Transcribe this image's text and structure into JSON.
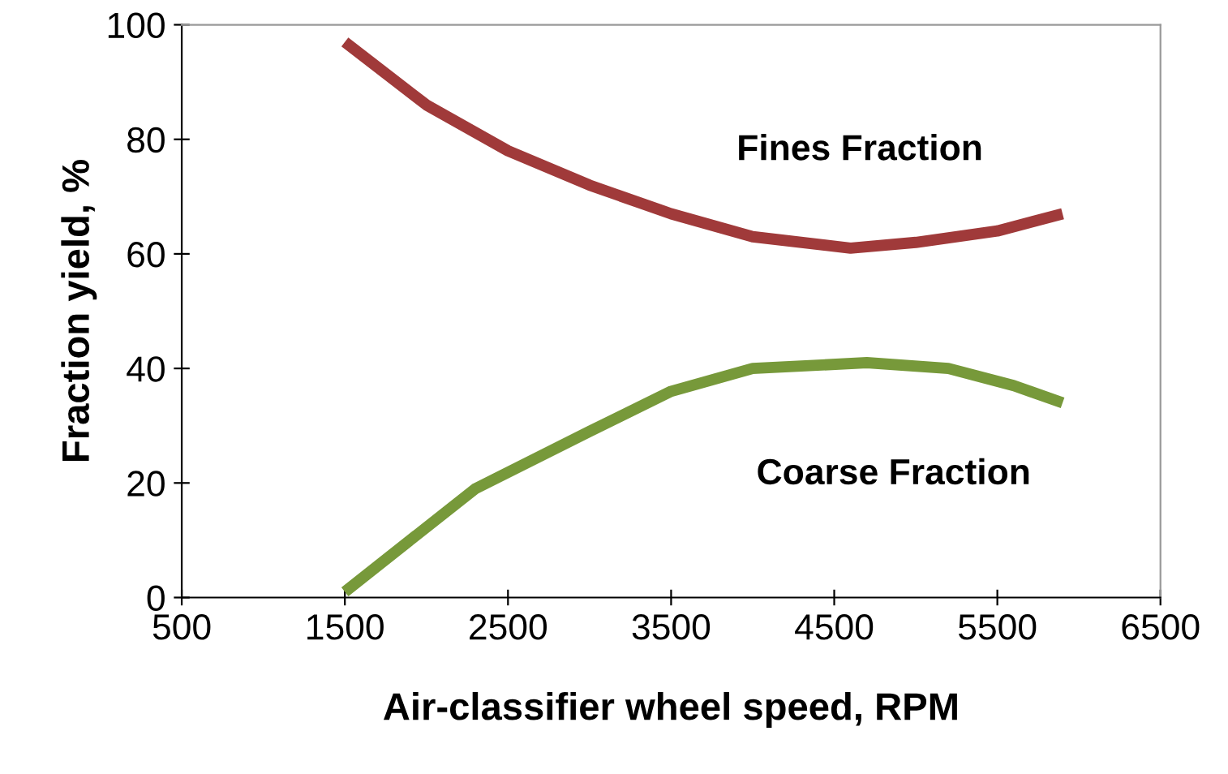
{
  "chart_data": {
    "type": "line",
    "xlabel": "Air-classifier wheel speed, RPM",
    "ylabel": "Fraction yield, %",
    "xlim": [
      500,
      6500
    ],
    "xticks": [
      500,
      1500,
      2500,
      3500,
      4500,
      5500,
      6500
    ],
    "ylim": [
      0,
      100
    ],
    "yticks": [
      0,
      20,
      40,
      60,
      80,
      100
    ],
    "grid": false,
    "marker": "none",
    "line_style": "solid",
    "series": [
      {
        "name": "Fines Fraction",
        "color": "#a03a3a",
        "x": [
          1500,
          2000,
          2500,
          3000,
          3500,
          4000,
          4600,
          5000,
          5500,
          5900
        ],
        "values": [
          97,
          86,
          78,
          72,
          67,
          63,
          61,
          62,
          64,
          67
        ]
      },
      {
        "name": "Coarse Fraction",
        "color": "#77993a",
        "x": [
          1500,
          2300,
          3000,
          3500,
          4000,
          4700,
          5200,
          5600,
          5900
        ],
        "values": [
          1,
          19,
          29,
          36,
          40,
          41,
          40,
          37,
          34
        ]
      }
    ]
  }
}
